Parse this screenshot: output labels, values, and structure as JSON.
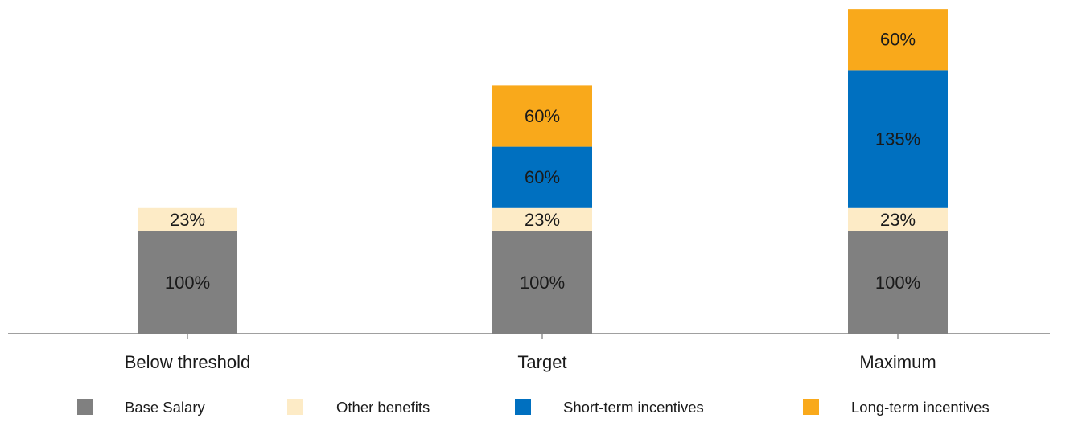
{
  "chart_data": {
    "type": "bar",
    "stacked": true,
    "categories": [
      "Below threshold",
      "Target",
      "Maximum"
    ],
    "series": [
      {
        "name": "Base Salary",
        "color": "#808080",
        "values": [
          100,
          100,
          100
        ],
        "labels": [
          "100%",
          "100%",
          "100%"
        ]
      },
      {
        "name": "Other benefits",
        "color": "#FDEBC6",
        "values": [
          23,
          23,
          23
        ],
        "labels": [
          "23%",
          "23%",
          "23%"
        ]
      },
      {
        "name": "Short-term incentives",
        "color": "#0070C0",
        "values": [
          0,
          60,
          135
        ],
        "labels": [
          "",
          "60%",
          "135%"
        ]
      },
      {
        "name": "Long-term incentives",
        "color": "#F9A91B",
        "values": [
          0,
          60,
          60
        ],
        "labels": [
          "",
          "60%",
          "60%"
        ]
      }
    ],
    "title": "",
    "xlabel": "",
    "ylabel": "",
    "ylim": [
      0,
      318
    ],
    "grid": false,
    "legend_position": "bottom",
    "axis_color": "#808080"
  }
}
